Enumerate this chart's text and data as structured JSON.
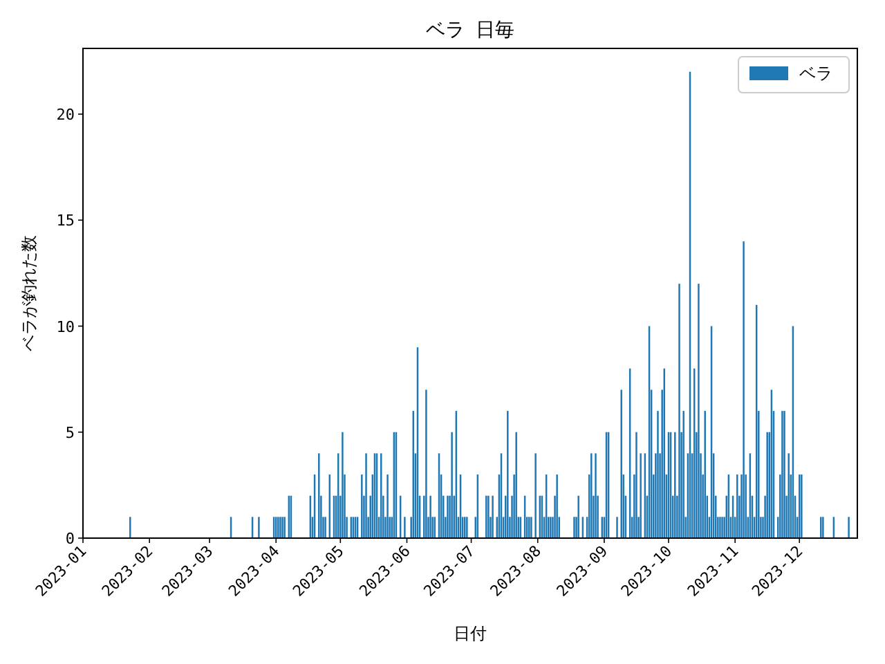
{
  "chart_data": {
    "type": "bar",
    "title": "ベラ 日毎",
    "xlabel": "日付",
    "ylabel": "ベラが釣れた数",
    "legend": "top right",
    "xlim": [
      "2023-01-01",
      "2023-12-28"
    ],
    "ylim": [
      0,
      23.1
    ],
    "yticks": [
      0,
      5,
      10,
      15,
      20
    ],
    "xticks": [
      {
        "value": "2023-01-01",
        "label": "2023-01"
      },
      {
        "value": "2023-02-01",
        "label": "2023-02"
      },
      {
        "value": "2023-03-01",
        "label": "2023-03"
      },
      {
        "value": "2023-04-01",
        "label": "2023-04"
      },
      {
        "value": "2023-05-01",
        "label": "2023-05"
      },
      {
        "value": "2023-06-01",
        "label": "2023-06"
      },
      {
        "value": "2023-07-01",
        "label": "2023-07"
      },
      {
        "value": "2023-08-01",
        "label": "2023-08"
      },
      {
        "value": "2023-09-01",
        "label": "2023-09"
      },
      {
        "value": "2023-10-01",
        "label": "2023-10"
      },
      {
        "value": "2023-11-01",
        "label": "2023-11"
      },
      {
        "value": "2023-12-01",
        "label": "2023-12"
      }
    ],
    "x": [
      "2023-01-23",
      "2023-03-11",
      "2023-03-21",
      "2023-03-24",
      "2023-03-31",
      "2023-04-01",
      "2023-04-02",
      "2023-04-03",
      "2023-04-04",
      "2023-04-05",
      "2023-04-07",
      "2023-04-08",
      "2023-04-17",
      "2023-04-18",
      "2023-04-19",
      "2023-04-21",
      "2023-04-22",
      "2023-04-23",
      "2023-04-24",
      "2023-04-26",
      "2023-04-28",
      "2023-04-29",
      "2023-04-30",
      "2023-05-01",
      "2023-05-02",
      "2023-05-03",
      "2023-05-04",
      "2023-05-06",
      "2023-05-07",
      "2023-05-08",
      "2023-05-09",
      "2023-05-11",
      "2023-05-12",
      "2023-05-13",
      "2023-05-14",
      "2023-05-15",
      "2023-05-16",
      "2023-05-17",
      "2023-05-18",
      "2023-05-19",
      "2023-05-20",
      "2023-05-21",
      "2023-05-22",
      "2023-05-23",
      "2023-05-24",
      "2023-05-25",
      "2023-05-26",
      "2023-05-27",
      "2023-05-29",
      "2023-05-31",
      "2023-06-03",
      "2023-06-04",
      "2023-06-05",
      "2023-06-06",
      "2023-06-07",
      "2023-06-09",
      "2023-06-10",
      "2023-06-11",
      "2023-06-12",
      "2023-06-13",
      "2023-06-14",
      "2023-06-16",
      "2023-06-17",
      "2023-06-18",
      "2023-06-19",
      "2023-06-20",
      "2023-06-21",
      "2023-06-22",
      "2023-06-23",
      "2023-06-24",
      "2023-06-25",
      "2023-06-26",
      "2023-06-27",
      "2023-06-28",
      "2023-06-29",
      "2023-07-03",
      "2023-07-04",
      "2023-07-08",
      "2023-07-09",
      "2023-07-10",
      "2023-07-11",
      "2023-07-13",
      "2023-07-14",
      "2023-07-15",
      "2023-07-16",
      "2023-07-17",
      "2023-07-18",
      "2023-07-19",
      "2023-07-20",
      "2023-07-21",
      "2023-07-22",
      "2023-07-23",
      "2023-07-24",
      "2023-07-26",
      "2023-07-27",
      "2023-07-28",
      "2023-07-29",
      "2023-07-31",
      "2023-08-02",
      "2023-08-03",
      "2023-08-04",
      "2023-08-05",
      "2023-08-06",
      "2023-08-07",
      "2023-08-08",
      "2023-08-09",
      "2023-08-10",
      "2023-08-11",
      "2023-08-18",
      "2023-08-19",
      "2023-08-20",
      "2023-08-22",
      "2023-08-24",
      "2023-08-25",
      "2023-08-26",
      "2023-08-27",
      "2023-08-28",
      "2023-08-29",
      "2023-08-31",
      "2023-09-01",
      "2023-09-02",
      "2023-09-03",
      "2023-09-07",
      "2023-09-09",
      "2023-09-10",
      "2023-09-11",
      "2023-09-13",
      "2023-09-14",
      "2023-09-15",
      "2023-09-16",
      "2023-09-17",
      "2023-09-18",
      "2023-09-20",
      "2023-09-21",
      "2023-09-22",
      "2023-09-23",
      "2023-09-24",
      "2023-09-25",
      "2023-09-26",
      "2023-09-27",
      "2023-09-28",
      "2023-09-29",
      "2023-09-30",
      "2023-10-01",
      "2023-10-02",
      "2023-10-03",
      "2023-10-04",
      "2023-10-05",
      "2023-10-06",
      "2023-10-07",
      "2023-10-08",
      "2023-10-09",
      "2023-10-10",
      "2023-10-11",
      "2023-10-12",
      "2023-10-13",
      "2023-10-14",
      "2023-10-15",
      "2023-10-16",
      "2023-10-17",
      "2023-10-18",
      "2023-10-19",
      "2023-10-20",
      "2023-10-21",
      "2023-10-22",
      "2023-10-23",
      "2023-10-24",
      "2023-10-25",
      "2023-10-26",
      "2023-10-27",
      "2023-10-28",
      "2023-10-29",
      "2023-10-30",
      "2023-10-31",
      "2023-11-01",
      "2023-11-02",
      "2023-11-03",
      "2023-11-04",
      "2023-11-05",
      "2023-11-06",
      "2023-11-07",
      "2023-11-08",
      "2023-11-09",
      "2023-11-10",
      "2023-11-11",
      "2023-11-12",
      "2023-11-13",
      "2023-11-14",
      "2023-11-15",
      "2023-11-16",
      "2023-11-17",
      "2023-11-18",
      "2023-11-19",
      "2023-11-21",
      "2023-11-22",
      "2023-11-23",
      "2023-11-24",
      "2023-11-25",
      "2023-11-26",
      "2023-11-27",
      "2023-11-28",
      "2023-11-29",
      "2023-11-30",
      "2023-12-01",
      "2023-12-02",
      "2023-12-11",
      "2023-12-12",
      "2023-12-17",
      "2023-12-24"
    ],
    "series": [
      {
        "name": "ベラ",
        "color": "#1f77b4",
        "values": [
          1,
          1,
          1,
          1,
          1,
          1,
          1,
          1,
          1,
          1,
          2,
          2,
          2,
          1,
          3,
          4,
          2,
          1,
          1,
          3,
          2,
          2,
          4,
          2,
          5,
          3,
          1,
          1,
          1,
          1,
          1,
          3,
          2,
          4,
          1,
          2,
          3,
          4,
          4,
          1,
          4,
          2,
          1,
          3,
          1,
          1,
          5,
          5,
          2,
          1,
          1,
          6,
          4,
          9,
          2,
          2,
          7,
          1,
          2,
          1,
          1,
          4,
          3,
          2,
          1,
          2,
          2,
          5,
          2,
          6,
          1,
          3,
          1,
          1,
          1,
          1,
          3,
          2,
          2,
          1,
          2,
          1,
          3,
          4,
          1,
          2,
          6,
          1,
          2,
          3,
          5,
          1,
          1,
          2,
          1,
          1,
          1,
          4,
          2,
          2,
          1,
          3,
          1,
          1,
          1,
          2,
          3,
          1,
          1,
          1,
          2,
          1,
          1,
          3,
          4,
          2,
          4,
          2,
          1,
          1,
          5,
          5,
          1,
          7,
          3,
          2,
          8,
          1,
          3,
          5,
          1,
          4,
          4,
          2,
          10,
          7,
          3,
          4,
          6,
          4,
          7,
          8,
          3,
          5,
          5,
          2,
          5,
          2,
          12,
          5,
          6,
          1,
          4,
          22,
          4,
          8,
          5,
          12,
          4,
          3,
          6,
          2,
          1,
          10,
          4,
          2,
          1,
          1,
          1,
          1,
          2,
          3,
          1,
          2,
          1,
          3,
          2,
          3,
          14,
          3,
          1,
          4,
          2,
          1,
          11,
          6,
          1,
          1,
          2,
          5,
          5,
          7,
          6,
          1,
          3,
          6,
          6,
          2,
          4,
          3,
          10,
          2,
          1,
          3,
          3,
          1,
          1,
          1,
          1
        ]
      }
    ]
  }
}
